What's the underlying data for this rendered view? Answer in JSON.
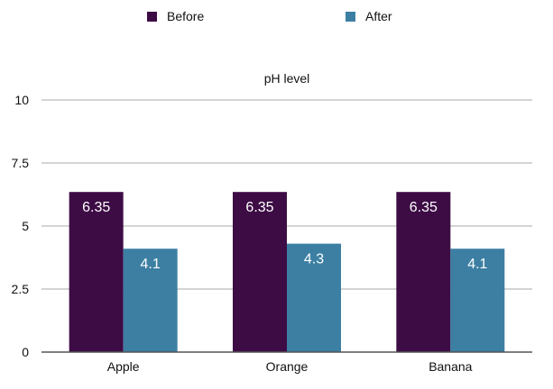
{
  "chart_data": {
    "type": "bar",
    "title": "pH level",
    "categories": [
      "Apple",
      "Orange",
      "Banana"
    ],
    "series": [
      {
        "name": "Before",
        "color": "#3d0c45",
        "values": [
          6.35,
          6.35,
          6.35
        ]
      },
      {
        "name": "After",
        "color": "#3c7fa3",
        "values": [
          4.1,
          4.3,
          4.1
        ]
      }
    ],
    "ylim": [
      0,
      10
    ],
    "yticks": [
      0,
      2.5,
      5,
      7.5,
      10
    ],
    "ytick_labels": [
      "0",
      "2.5",
      "5",
      "7.5",
      "10"
    ],
    "grid": true,
    "legend_position": "top",
    "data_labels": true
  }
}
